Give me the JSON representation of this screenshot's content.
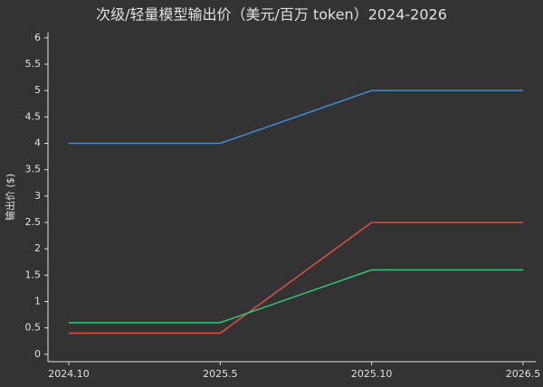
{
  "chart_data": {
    "type": "line",
    "title": "次级/轻量模型输出价（美元/百万 token）2024-2026",
    "y_label": "输出价 ($)",
    "categories": [
      "2024.10",
      "2025.5",
      "2025.10",
      "2026.5"
    ],
    "series": [
      {
        "color": "#3a8fd6",
        "values": [
          4,
          4,
          5,
          5
        ]
      },
      {
        "color": "#e0503f",
        "values": [
          0.4,
          0.4,
          2.5,
          2.5
        ]
      },
      {
        "color": "#2ecc71",
        "values": [
          0.6,
          0.6,
          1.6,
          1.6
        ]
      }
    ],
    "ylim": [
      -0.14,
      6.1
    ],
    "yticks": [
      0,
      0.5,
      1,
      1.5,
      2,
      2.5,
      3,
      3.5,
      4,
      4.5,
      5,
      5.5,
      6
    ]
  }
}
